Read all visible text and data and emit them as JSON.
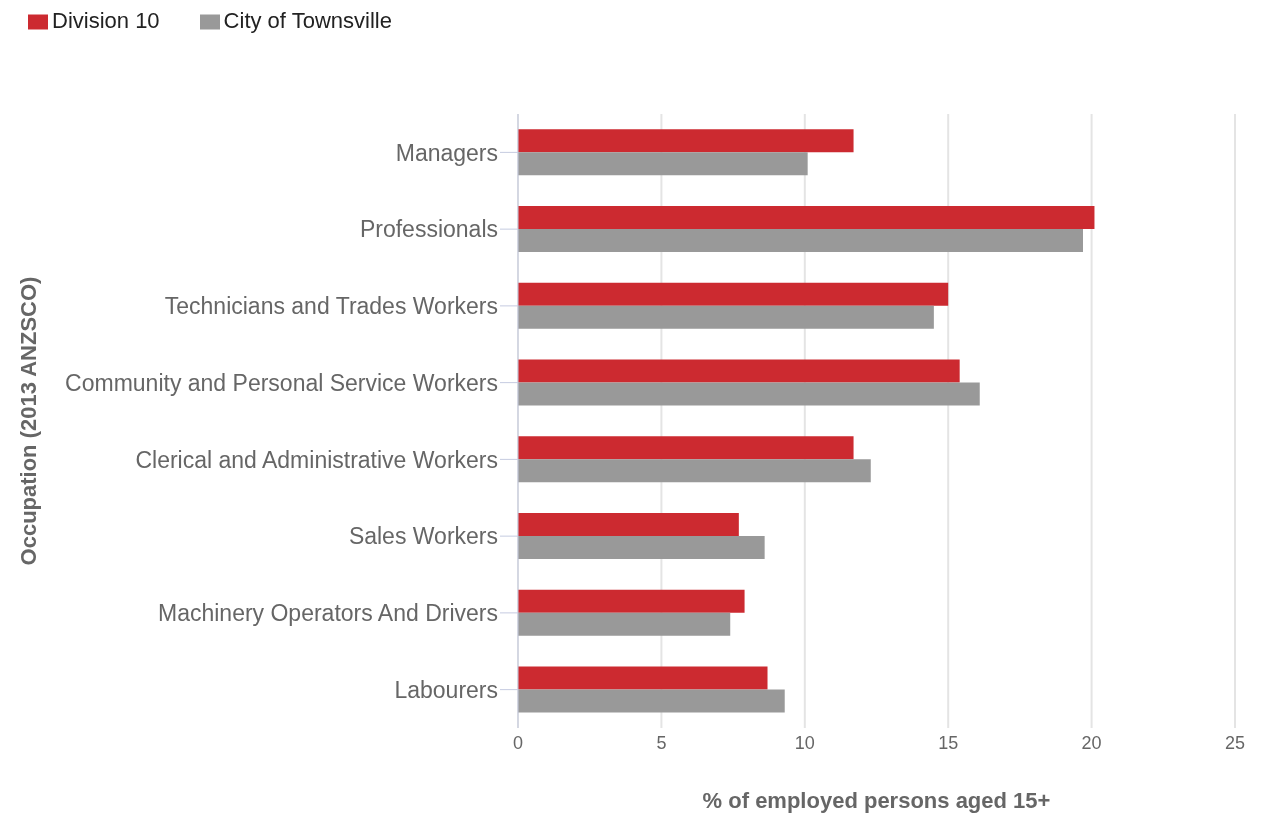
{
  "chart_data": {
    "type": "bar",
    "orientation": "horizontal",
    "xlabel": "% of employed persons aged 15+",
    "ylabel": "Occupation (2013 ANZSCO)",
    "categories": [
      "Managers",
      "Professionals",
      "Technicians and Trades Workers",
      "Community and Personal Service Workers",
      "Clerical and Administrative Workers",
      "Sales Workers",
      "Machinery Operators And Drivers",
      "Labourers"
    ],
    "series": [
      {
        "name": "Division 10",
        "color": "#cc2a30",
        "values": [
          11.7,
          20.1,
          15.0,
          15.4,
          11.7,
          7.7,
          7.9,
          8.7
        ]
      },
      {
        "name": "City of Townsville",
        "color": "#999999",
        "values": [
          10.1,
          19.7,
          14.5,
          16.1,
          12.3,
          8.6,
          7.4,
          9.3
        ]
      }
    ],
    "xlim": [
      0,
      25
    ],
    "xticks": [
      0,
      5,
      10,
      15,
      20,
      25
    ],
    "grid": "x",
    "legend": "top left"
  }
}
